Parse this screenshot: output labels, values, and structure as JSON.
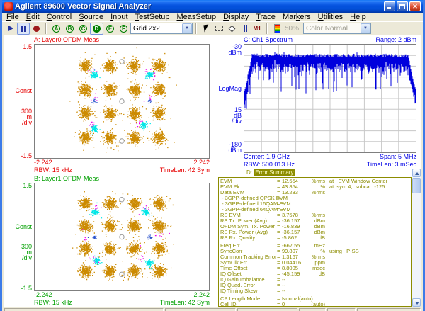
{
  "window": {
    "title": "Agilent 89600 Vector Signal Analyzer"
  },
  "menu": {
    "items": [
      {
        "pre": "",
        "key": "F",
        "post": "ile"
      },
      {
        "pre": "",
        "key": "E",
        "post": "dit"
      },
      {
        "pre": "",
        "key": "C",
        "post": "ontrol"
      },
      {
        "pre": "",
        "key": "S",
        "post": "ource"
      },
      {
        "pre": "",
        "key": "I",
        "post": "nput"
      },
      {
        "pre": "",
        "key": "T",
        "post": "estSetup"
      },
      {
        "pre": "",
        "key": "M",
        "post": "easSetup"
      },
      {
        "pre": "",
        "key": "D",
        "post": "isplay"
      },
      {
        "pre": "",
        "key": "T",
        "post": "race"
      },
      {
        "pre": "Mar",
        "key": "k",
        "post": "ers"
      },
      {
        "pre": "",
        "key": "U",
        "post": "tilities"
      },
      {
        "pre": "",
        "key": "H",
        "post": "elp"
      }
    ]
  },
  "toolbar": {
    "trace_buttons": [
      "A",
      "B",
      "C",
      "D",
      "E",
      "F"
    ],
    "active_trace": "D",
    "grid_selector": "Grid 2x2",
    "zoom_level": "50%",
    "color_mode": "Color Normal",
    "m1_label": "M1"
  },
  "icons": {
    "play-icon": "triangle-right",
    "pause-icon": "double-bar",
    "record-icon": "filled-circle",
    "pointer-icon": "arrow-cursor",
    "zoom-box-icon": "dashed-rectangle",
    "marker-diamond-icon": "diamond-outline",
    "band-bars-icon": "triple-vertical-bars",
    "marker-m1-icon": "M1",
    "colorbar-icon": "rainbow-gradient"
  },
  "panes": {
    "a": {
      "color": "#E60000",
      "y_top": "1.5",
      "y_mid": "Const",
      "scale_val": "300",
      "scale_unit": "m",
      "scale_div": "/div",
      "y_bot": "-1.5",
      "x_left": "-2.242",
      "x_right": "2.242",
      "rbw": "RBW: 15 kHz",
      "timelen": "TimeLen: 42 Sym"
    },
    "b": {
      "color": "#00A000",
      "y_top": "1.5",
      "y_mid": "Const",
      "scale_val": "300",
      "scale_unit": "m",
      "scale_div": "/div",
      "y_bot": "-1.5",
      "x_left": "-2.242",
      "x_right": "2.242",
      "rbw": "RBW: 15 kHz",
      "timelen": "TimeLen: 42 Sym"
    },
    "c": {
      "color": "#0000E6",
      "range": "Range: 2 dBm",
      "y_top_val": "-30",
      "y_top_unit": "dBm",
      "y_mid": "LogMag",
      "scale_val": "15",
      "scale_unit": "dB",
      "scale_div": "/div",
      "y_bot_val": "-180",
      "y_bot_unit": "dBm",
      "center": "Center: 1.9 GHz",
      "span": "Span: 5 MHz",
      "rbw": "RBW: 500.013 Hz",
      "timelen": "TimeLen: 3 mSec"
    },
    "d": {
      "color": "#8C8C00",
      "label": "D:",
      "title": "Error Summary",
      "eq": "="
    }
  },
  "chart_data": [
    {
      "id": "A",
      "type": "scatter",
      "kind": "constellation-16qam",
      "title": "A: Layer0 OFDM Meas",
      "xlim": [
        -2.242,
        2.242
      ],
      "ylim": [
        -1.5,
        1.5
      ],
      "seed": 7,
      "series": [
        {
          "name": "16QAM data subcarriers",
          "color": "#CC8A00",
          "levels": [
            -0.949,
            -0.316,
            0.316,
            0.949
          ],
          "points_per_cluster": 230,
          "sigma": 0.072
        },
        {
          "name": "stray magenta symbols",
          "color": "#EE00EE",
          "centers": [
            [
              -0.73,
              0.82
            ],
            [
              0.62,
              0.8
            ],
            [
              0.8,
              0.7
            ],
            [
              -0.76,
              -0.56
            ],
            [
              0.47,
              -0.55
            ],
            [
              -0.7,
              0.1
            ],
            [
              0.72,
              0.12
            ]
          ],
          "points_per_cluster": 8,
          "sigma": 0.05
        },
        {
          "name": "QPSK pilot subcarriers",
          "color": "#00E6E6",
          "centers": [
            [
              -0.707,
              0.707
            ],
            [
              0.707,
              0.707
            ],
            [
              -0.707,
              -0.707
            ],
            [
              0.55,
              -0.62
            ]
          ],
          "points_per_cluster": 75,
          "sigma": 0.042
        },
        {
          "name": "sync symbols",
          "color": "#2952CC",
          "centers": [
            [
              -0.707,
              0.0
            ],
            [
              0.707,
              0.02
            ]
          ],
          "points_per_cluster": 15,
          "sigma": 0.028
        }
      ],
      "ref_circles": [
        [
          0,
          1.05
        ],
        [
          0,
          0
        ],
        [
          0,
          -1.05
        ]
      ]
    },
    {
      "id": "B",
      "type": "scatter",
      "kind": "constellation-16qam",
      "title": "B: Layer1 OFDM Meas",
      "xlim": [
        -2.242,
        2.242
      ],
      "ylim": [
        -1.5,
        1.5
      ],
      "seed": 131,
      "series": [
        {
          "name": "16QAM data subcarriers",
          "color": "#CC8A00",
          "levels": [
            -0.949,
            -0.316,
            0.316,
            0.949
          ],
          "points_per_cluster": 230,
          "sigma": 0.072
        },
        {
          "name": "stray magenta symbols",
          "color": "#EE00EE",
          "centers": [
            [
              -0.68,
              0.84
            ],
            [
              0.58,
              0.82
            ],
            [
              -0.95,
              -0.05
            ],
            [
              0.93,
              0.08
            ],
            [
              -0.72,
              -0.6
            ],
            [
              0.5,
              -0.58
            ]
          ],
          "points_per_cluster": 8,
          "sigma": 0.05
        },
        {
          "name": "QPSK pilot subcarriers",
          "color": "#00E6E6",
          "centers": [
            [
              -0.707,
              0.707
            ],
            [
              0.62,
              0.72
            ],
            [
              -0.65,
              -0.66
            ],
            [
              0.707,
              -0.707
            ]
          ],
          "points_per_cluster": 75,
          "sigma": 0.042
        },
        {
          "name": "sync symbols",
          "color": "#2952CC",
          "centers": [
            [
              -0.707,
              0.0
            ],
            [
              0.707,
              0.0
            ]
          ],
          "points_per_cluster": 15,
          "sigma": 0.028
        }
      ],
      "ref_circles": [
        [
          0,
          1.05
        ],
        [
          0,
          0
        ],
        [
          0,
          -1.05
        ]
      ]
    },
    {
      "id": "C",
      "type": "line",
      "kind": "spectrum",
      "title": "C: Ch1 Spectrum",
      "ylabel": "LogMag",
      "range_dbm": 2,
      "y_top_dbm": -30,
      "y_bottom_dbm": -180,
      "db_per_div": 15,
      "center": "1.9 GHz",
      "span": "5 MHz",
      "rbw": "500.013 Hz",
      "time_len": "3 mSec",
      "band": {
        "start_frac": 0.045,
        "stop_frac": 0.957,
        "top_dbm": -45,
        "noise_depth_db": 38
      },
      "grid_divs": [
        10,
        10
      ],
      "color": "#0000DD",
      "seed": 29
    },
    {
      "id": "D",
      "type": "table",
      "title": "Error Summary",
      "groups": [
        [
          {
            "label": "EVM",
            "value": "12.554",
            "unit": "%rms",
            "extra": "at   EVM Window Center"
          },
          {
            "label": "EVM Pk",
            "value": "43.854",
            "unit": "%",
            "extra": "at  sym 4,  subcar  -125"
          },
          {
            "label": "Data EVM",
            "value": "13.233",
            "unit": "%rms",
            "extra": ""
          },
          {
            "label": " - 3GPP-defined QPSK EVM",
            "value": "--",
            "unit": "",
            "extra": ""
          },
          {
            "label": " - 3GPP-defined 16QAM EVM",
            "value": "--",
            "unit": "",
            "extra": ""
          },
          {
            "label": " - 3GPP-defined 64QAM EVM",
            "value": "--",
            "unit": "",
            "extra": ""
          },
          {
            "label": "RS EVM",
            "value": "3.7578",
            "unit": "%rms",
            "extra": ""
          },
          {
            "label": "RS Tx. Power (Avg)",
            "value": "-36.157",
            "unit": "dBm",
            "extra": ""
          },
          {
            "label": "OFDM Sym. Tx. Power",
            "value": "-16.839",
            "unit": "dBm",
            "extra": ""
          },
          {
            "label": "RS Rx. Power (Avg)",
            "value": "-36.157",
            "unit": "dBm",
            "extra": ""
          },
          {
            "label": "RS Rx. Quality",
            "value": "-5.862",
            "unit": "dB",
            "extra": ""
          }
        ],
        [
          {
            "label": "Freq Err",
            "value": "-667.55",
            "unit": "mHz",
            "extra": ""
          },
          {
            "label": "SyncCorr",
            "value": "99.807",
            "unit": "%",
            "extra": "using   P-SS"
          },
          {
            "label": "Common Tracking Error",
            "value": "1.3167",
            "unit": "%rms",
            "extra": ""
          },
          {
            "label": "SymClk Err",
            "value": "0.04416",
            "unit": "ppm",
            "extra": ""
          },
          {
            "label": "Time Offset",
            "value": "8.8005",
            "unit": "msec",
            "extra": ""
          },
          {
            "label": "IQ Offset",
            "value": "-45.159",
            "unit": "dB",
            "extra": ""
          },
          {
            "label": "IQ Gain Imbalance",
            "value": "--",
            "unit": "",
            "extra": ""
          },
          {
            "label": "IQ Quad. Error",
            "value": "--",
            "unit": "",
            "extra": ""
          },
          {
            "label": "IQ Timing Skew",
            "value": "--",
            "unit": "",
            "extra": ""
          }
        ],
        [
          {
            "label": "CP Length Mode",
            "value": "Normal(auto)",
            "unit": "",
            "extra": ""
          },
          {
            "label": "Cell ID",
            "value": "0",
            "unit": "(auto)",
            "extra": ""
          }
        ]
      ]
    }
  ]
}
